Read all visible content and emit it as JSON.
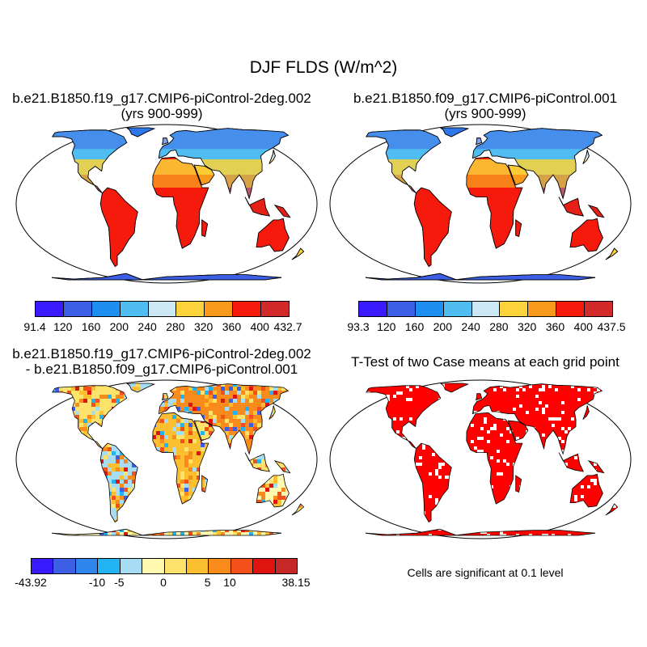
{
  "title": "DJF FLDS (W/m^2)",
  "panels": [
    {
      "id": "case1",
      "title_line1": "b.e21.B1850.f19_g17.CMIP6-piControl-2deg.002",
      "title_line2": "(yrs 900-999)",
      "colorbar": {
        "colors": [
          "#3a1aff",
          "#3d5fe6",
          "#1e8ff0",
          "#4fbdf2",
          "#cde8f5",
          "#fcd33a",
          "#f99a1c",
          "#f51a0c",
          "#d22a2a"
        ],
        "tick_labels": [
          "91.4",
          "120",
          "160",
          "200",
          "240",
          "280",
          "320",
          "360",
          "400",
          "432.7"
        ]
      }
    },
    {
      "id": "case2",
      "title_line1": "b.e21.B1850.f09_g17.CMIP6-piControl.001",
      "title_line2": "(yrs 900-999)",
      "colorbar": {
        "colors": [
          "#3a1aff",
          "#3d5fe6",
          "#1e8ff0",
          "#4fbdf2",
          "#cde8f5",
          "#fcd33a",
          "#f99a1c",
          "#f51a0c",
          "#d22a2a"
        ],
        "tick_labels": [
          "93.3",
          "120",
          "160",
          "200",
          "240",
          "280",
          "320",
          "360",
          "400",
          "437.5"
        ]
      }
    },
    {
      "id": "difference",
      "title_line1": "b.e21.B1850.f19_g17.CMIP6-piControl-2deg.002",
      "title_line2": "- b.e21.B1850.f09_g17.CMIP6-piControl.001",
      "colorbar": {
        "colors": [
          "#3a1aff",
          "#3d5fe6",
          "#2f86ec",
          "#22b4f2",
          "#a7dcf5",
          "#fff9b0",
          "#fde36c",
          "#fcbf30",
          "#f98a1c",
          "#f5501a",
          "#e0140e",
          "#c62828"
        ],
        "tick_labels": [
          "-43.92",
          "-10",
          "-5",
          "0",
          "5",
          "10",
          "38.15"
        ]
      }
    },
    {
      "id": "ttest",
      "title_line1": "T-Test of two Case means at each grid point",
      "note": "Cells are significant at 0.1 level",
      "significant_color": "#ff0000"
    }
  ]
}
